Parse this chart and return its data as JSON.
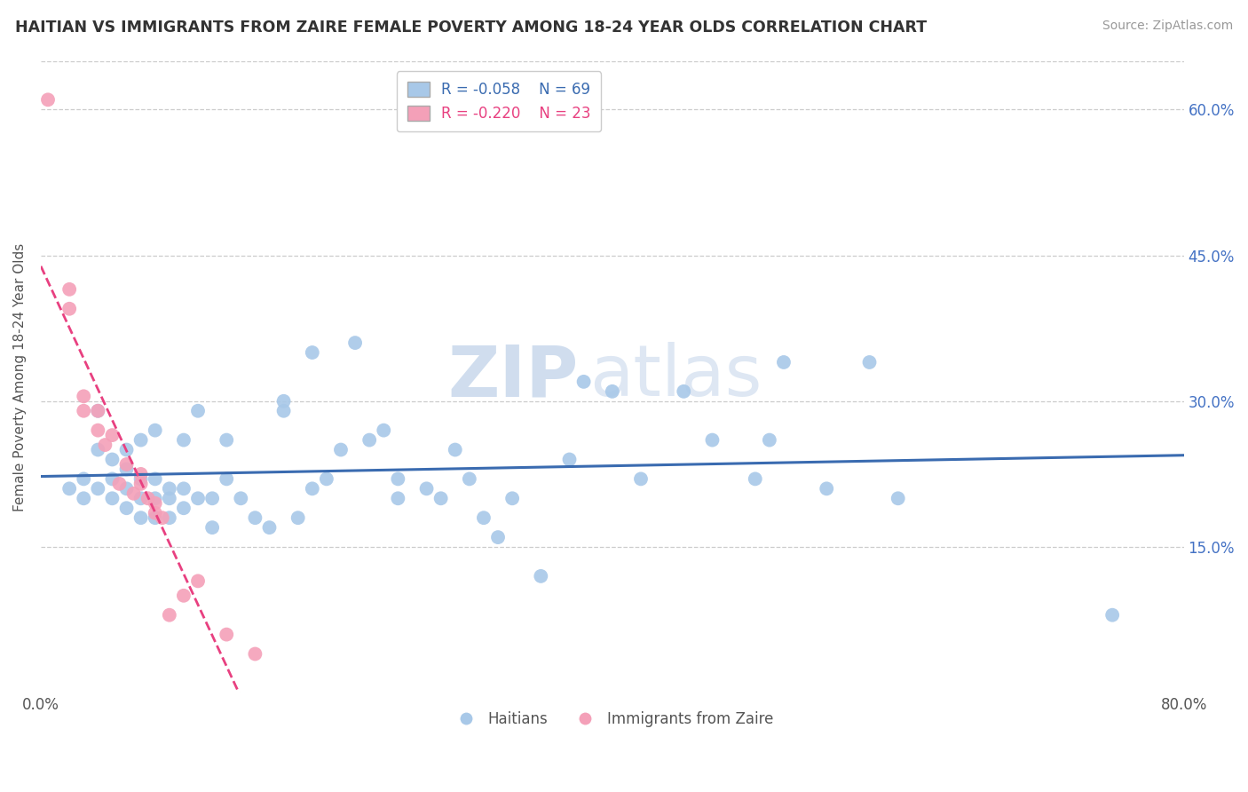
{
  "title": "HAITIAN VS IMMIGRANTS FROM ZAIRE FEMALE POVERTY AMONG 18-24 YEAR OLDS CORRELATION CHART",
  "source": "Source: ZipAtlas.com",
  "ylabel": "Female Poverty Among 18-24 Year Olds",
  "xlim": [
    0.0,
    0.8
  ],
  "ylim": [
    0.0,
    0.65
  ],
  "yticks_right": [
    0.15,
    0.3,
    0.45,
    0.6
  ],
  "ytick_labels_right": [
    "15.0%",
    "30.0%",
    "45.0%",
    "60.0%"
  ],
  "legend_r1": "R = -0.058",
  "legend_n1": "N = 69",
  "legend_r2": "R = -0.220",
  "legend_n2": "N = 23",
  "color_haitian": "#A8C8E8",
  "color_zaire": "#F4A0B8",
  "color_line_haitian": "#3A6BB0",
  "color_line_zaire": "#E84080",
  "watermark_zip": "ZIP",
  "watermark_atlas": "atlas",
  "legend_label1": "Haitians",
  "legend_label2": "Immigrants from Zaire",
  "haitian_x": [
    0.02,
    0.03,
    0.03,
    0.04,
    0.04,
    0.04,
    0.05,
    0.05,
    0.05,
    0.06,
    0.06,
    0.06,
    0.06,
    0.07,
    0.07,
    0.07,
    0.07,
    0.08,
    0.08,
    0.08,
    0.08,
    0.09,
    0.09,
    0.09,
    0.1,
    0.1,
    0.1,
    0.11,
    0.11,
    0.12,
    0.12,
    0.13,
    0.13,
    0.14,
    0.15,
    0.16,
    0.17,
    0.17,
    0.18,
    0.19,
    0.19,
    0.2,
    0.21,
    0.22,
    0.23,
    0.24,
    0.25,
    0.25,
    0.27,
    0.28,
    0.29,
    0.3,
    0.31,
    0.32,
    0.33,
    0.35,
    0.37,
    0.38,
    0.4,
    0.42,
    0.45,
    0.47,
    0.5,
    0.51,
    0.52,
    0.55,
    0.58,
    0.6,
    0.75
  ],
  "haitian_y": [
    0.21,
    0.2,
    0.22,
    0.21,
    0.25,
    0.29,
    0.2,
    0.22,
    0.24,
    0.19,
    0.21,
    0.23,
    0.25,
    0.18,
    0.2,
    0.22,
    0.26,
    0.18,
    0.2,
    0.22,
    0.27,
    0.18,
    0.2,
    0.21,
    0.19,
    0.21,
    0.26,
    0.2,
    0.29,
    0.17,
    0.2,
    0.22,
    0.26,
    0.2,
    0.18,
    0.17,
    0.29,
    0.3,
    0.18,
    0.21,
    0.35,
    0.22,
    0.25,
    0.36,
    0.26,
    0.27,
    0.2,
    0.22,
    0.21,
    0.2,
    0.25,
    0.22,
    0.18,
    0.16,
    0.2,
    0.12,
    0.24,
    0.32,
    0.31,
    0.22,
    0.31,
    0.26,
    0.22,
    0.26,
    0.34,
    0.21,
    0.34,
    0.2,
    0.08
  ],
  "zaire_x": [
    0.005,
    0.02,
    0.02,
    0.03,
    0.03,
    0.04,
    0.04,
    0.045,
    0.05,
    0.055,
    0.06,
    0.065,
    0.07,
    0.07,
    0.075,
    0.08,
    0.08,
    0.085,
    0.09,
    0.1,
    0.11,
    0.13,
    0.15
  ],
  "zaire_y": [
    0.61,
    0.395,
    0.415,
    0.29,
    0.305,
    0.27,
    0.29,
    0.255,
    0.265,
    0.215,
    0.235,
    0.205,
    0.215,
    0.225,
    0.2,
    0.185,
    0.195,
    0.18,
    0.08,
    0.1,
    0.115,
    0.06,
    0.04
  ]
}
